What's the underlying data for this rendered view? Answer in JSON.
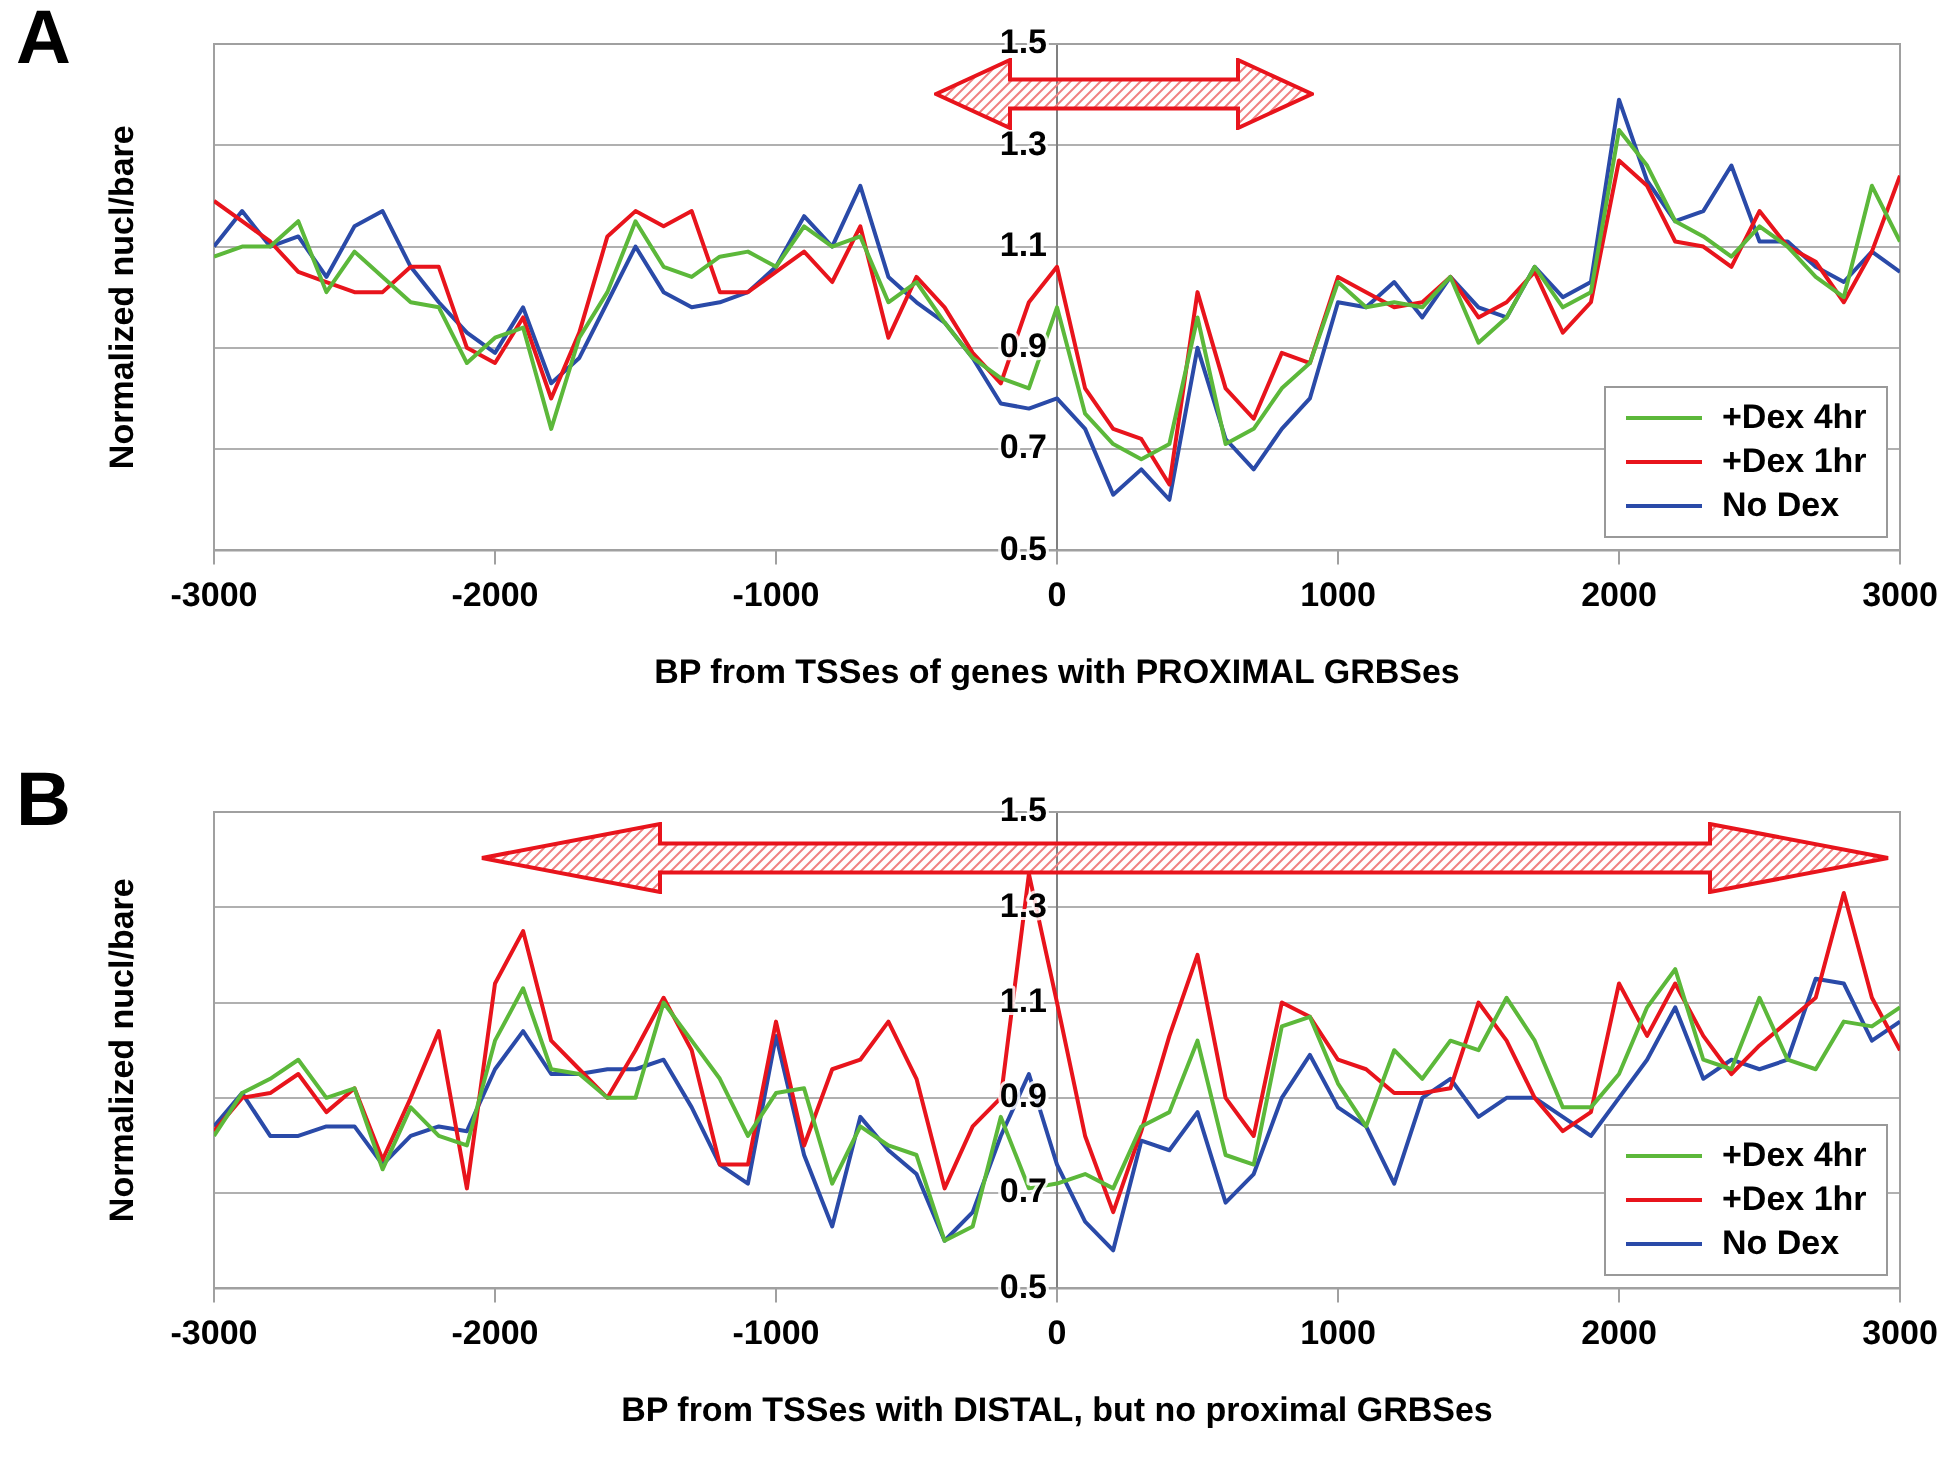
{
  "chart_data": [
    {
      "type": "line",
      "title": "A",
      "xlabel": "BP from TSSes of genes with PROXIMAL GRBSes",
      "ylabel": "Normalized nucl/bare",
      "legend": "bottom right",
      "grid": "y",
      "xlim": [
        -3000,
        3000
      ],
      "xticks": [
        -3000,
        -2000,
        -1000,
        0,
        1000,
        2000,
        3000
      ],
      "ylim": [
        0.5,
        1.5
      ],
      "yticks": [
        0.5,
        0.7,
        0.9,
        1.1,
        1.3,
        1.5
      ],
      "x": [
        -3000,
        -2900,
        -2800,
        -2700,
        -2600,
        -2500,
        -2400,
        -2300,
        -2200,
        -2100,
        -2000,
        -1900,
        -1800,
        -1700,
        -1600,
        -1500,
        -1400,
        -1300,
        -1200,
        -1100,
        -1000,
        -900,
        -800,
        -700,
        -600,
        -500,
        -400,
        -300,
        -200,
        -100,
        0,
        100,
        200,
        300,
        400,
        500,
        600,
        700,
        800,
        900,
        1000,
        1100,
        1200,
        1300,
        1400,
        1500,
        1600,
        1700,
        1800,
        1900,
        2000,
        2100,
        2200,
        2300,
        2400,
        2500,
        2600,
        2700,
        2800,
        2900,
        3000
      ],
      "series": [
        {
          "name": "+Dex 4hr",
          "color": "#5cb83a",
          "values": [
            1.08,
            1.1,
            1.1,
            1.15,
            1.01,
            1.09,
            1.04,
            0.99,
            0.98,
            0.87,
            0.92,
            0.94,
            0.74,
            0.92,
            1.01,
            1.15,
            1.06,
            1.04,
            1.08,
            1.09,
            1.06,
            1.14,
            1.1,
            1.12,
            0.99,
            1.03,
            0.95,
            0.88,
            0.84,
            0.82,
            0.98,
            0.77,
            0.71,
            0.68,
            0.71,
            0.96,
            0.71,
            0.74,
            0.82,
            0.87,
            1.03,
            0.98,
            0.99,
            0.98,
            1.04,
            0.91,
            0.96,
            1.06,
            0.98,
            1.01,
            1.33,
            1.26,
            1.15,
            1.12,
            1.08,
            1.14,
            1.1,
            1.04,
            1.0,
            1.22,
            1.11
          ]
        },
        {
          "name": "+Dex 1hr",
          "color": "#e8141c",
          "values": [
            1.19,
            1.15,
            1.11,
            1.05,
            1.03,
            1.01,
            1.01,
            1.06,
            1.06,
            0.9,
            0.87,
            0.96,
            0.8,
            0.93,
            1.12,
            1.17,
            1.14,
            1.17,
            1.01,
            1.01,
            1.05,
            1.09,
            1.03,
            1.14,
            0.92,
            1.04,
            0.98,
            0.89,
            0.83,
            0.99,
            1.06,
            0.82,
            0.74,
            0.72,
            0.63,
            1.01,
            0.82,
            0.76,
            0.89,
            0.87,
            1.04,
            1.01,
            0.98,
            0.99,
            1.04,
            0.96,
            0.99,
            1.05,
            0.93,
            0.99,
            1.27,
            1.22,
            1.11,
            1.1,
            1.06,
            1.17,
            1.1,
            1.07,
            0.99,
            1.09,
            1.24
          ]
        },
        {
          "name": "No Dex",
          "color": "#2a4aa8",
          "values": [
            1.1,
            1.17,
            1.1,
            1.12,
            1.04,
            1.14,
            1.17,
            1.06,
            0.99,
            0.93,
            0.89,
            0.98,
            0.83,
            0.88,
            0.99,
            1.1,
            1.01,
            0.98,
            0.99,
            1.01,
            1.06,
            1.16,
            1.1,
            1.22,
            1.04,
            0.99,
            0.95,
            0.88,
            0.79,
            0.78,
            0.8,
            0.74,
            0.61,
            0.66,
            0.6,
            0.9,
            0.72,
            0.66,
            0.74,
            0.8,
            0.99,
            0.98,
            1.03,
            0.96,
            1.04,
            0.98,
            0.96,
            1.06,
            1.0,
            1.03,
            1.39,
            1.23,
            1.15,
            1.17,
            1.26,
            1.11,
            1.11,
            1.06,
            1.03,
            1.09,
            1.05
          ]
        }
      ]
    },
    {
      "type": "line",
      "title": "B",
      "xlabel": "BP from TSSes with DISTAL, but no proximal GRBSes",
      "ylabel": "Normalized nucl/bare",
      "legend": "bottom right",
      "grid": "y",
      "xlim": [
        -3000,
        3000
      ],
      "xticks": [
        -3000,
        -2000,
        -1000,
        0,
        1000,
        2000,
        3000
      ],
      "ylim": [
        0.5,
        1.5
      ],
      "yticks": [
        0.5,
        0.7,
        0.9,
        1.1,
        1.3,
        1.5
      ],
      "x": [
        -3000,
        -2900,
        -2800,
        -2700,
        -2600,
        -2500,
        -2400,
        -2300,
        -2200,
        -2100,
        -2000,
        -1900,
        -1800,
        -1700,
        -1600,
        -1500,
        -1400,
        -1300,
        -1200,
        -1100,
        -1000,
        -900,
        -800,
        -700,
        -600,
        -500,
        -400,
        -300,
        -200,
        -100,
        0,
        100,
        200,
        300,
        400,
        500,
        600,
        700,
        800,
        900,
        1000,
        1100,
        1200,
        1300,
        1400,
        1500,
        1600,
        1700,
        1800,
        1900,
        2000,
        2100,
        2200,
        2300,
        2400,
        2500,
        2600,
        2700,
        2800,
        2900,
        3000
      ],
      "series": [
        {
          "name": "+Dex 4hr",
          "color": "#5cb83a",
          "values": [
            0.82,
            0.91,
            0.94,
            0.98,
            0.9,
            0.92,
            0.75,
            0.88,
            0.82,
            0.8,
            1.02,
            1.13,
            0.96,
            0.95,
            0.9,
            0.9,
            1.1,
            1.02,
            0.94,
            0.82,
            0.91,
            0.92,
            0.72,
            0.84,
            0.8,
            0.78,
            0.6,
            0.63,
            0.86,
            0.71,
            0.72,
            0.74,
            0.71,
            0.84,
            0.87,
            1.02,
            0.78,
            0.76,
            1.05,
            1.07,
            0.93,
            0.84,
            1.0,
            0.94,
            1.02,
            1.0,
            1.11,
            1.02,
            0.88,
            0.88,
            0.95,
            1.09,
            1.17,
            0.98,
            0.96,
            1.11,
            0.98,
            0.96,
            1.06,
            1.05,
            1.09
          ]
        },
        {
          "name": "+Dex 1hr",
          "color": "#e8141c",
          "values": [
            0.83,
            0.9,
            0.91,
            0.95,
            0.87,
            0.92,
            0.77,
            0.9,
            1.04,
            0.71,
            1.14,
            1.25,
            1.02,
            0.96,
            0.9,
            1.0,
            1.11,
            1.0,
            0.76,
            0.76,
            1.06,
            0.8,
            0.96,
            0.98,
            1.06,
            0.94,
            0.71,
            0.84,
            0.9,
            1.37,
            1.1,
            0.82,
            0.66,
            0.83,
            1.03,
            1.2,
            0.9,
            0.82,
            1.1,
            1.07,
            0.98,
            0.96,
            0.91,
            0.91,
            0.92,
            1.1,
            1.02,
            0.9,
            0.83,
            0.87,
            1.14,
            1.03,
            1.14,
            1.03,
            0.95,
            1.01,
            1.06,
            1.11,
            1.33,
            1.11,
            1.0
          ]
        },
        {
          "name": "No Dex",
          "color": "#2a4aa8",
          "values": [
            0.84,
            0.91,
            0.82,
            0.82,
            0.84,
            0.84,
            0.76,
            0.82,
            0.84,
            0.83,
            0.96,
            1.04,
            0.95,
            0.95,
            0.96,
            0.96,
            0.98,
            0.88,
            0.76,
            0.72,
            1.03,
            0.78,
            0.63,
            0.86,
            0.79,
            0.74,
            0.6,
            0.66,
            0.82,
            0.95,
            0.76,
            0.64,
            0.58,
            0.81,
            0.79,
            0.87,
            0.68,
            0.74,
            0.9,
            0.99,
            0.88,
            0.84,
            0.72,
            0.9,
            0.94,
            0.86,
            0.9,
            0.9,
            0.86,
            0.82,
            0.9,
            0.98,
            1.09,
            0.94,
            0.98,
            0.96,
            0.98,
            1.15,
            1.14,
            1.02,
            1.06
          ]
        }
      ]
    }
  ]
}
